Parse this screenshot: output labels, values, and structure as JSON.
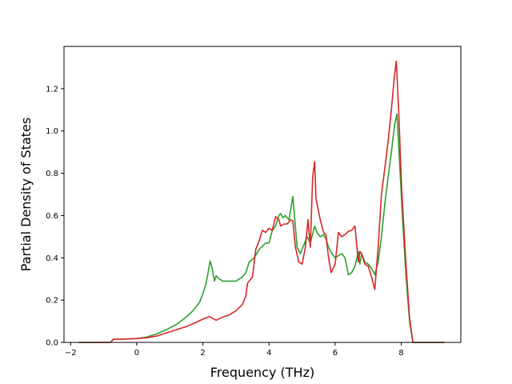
{
  "chart_data": {
    "type": "line",
    "title": "",
    "xlabel": "Frequency (THz)",
    "ylabel": "Partial Density of States",
    "xlim": [
      -2.2,
      9.8
    ],
    "ylim": [
      0.0,
      1.4
    ],
    "x_ticks": [
      -2,
      0,
      2,
      4,
      6,
      8
    ],
    "y_ticks": [
      0.0,
      0.2,
      0.4,
      0.6,
      0.8,
      1.0,
      1.2
    ],
    "x_tick_labels": [
      "−2",
      "0",
      "2",
      "4",
      "6",
      "8"
    ],
    "y_tick_labels": [
      "0.0",
      "0.2",
      "0.4",
      "0.6",
      "0.8",
      "1.0",
      "1.2"
    ],
    "grid": false,
    "legend": "none",
    "series": [
      {
        "color": "#2ca02c",
        "points": [
          [
            -1.75,
            0.0
          ],
          [
            -0.8,
            0.0
          ],
          [
            -0.7,
            0.015
          ],
          [
            -0.4,
            0.015
          ],
          [
            0.0,
            0.018
          ],
          [
            0.3,
            0.025
          ],
          [
            0.6,
            0.04
          ],
          [
            0.9,
            0.06
          ],
          [
            1.2,
            0.085
          ],
          [
            1.5,
            0.12
          ],
          [
            1.7,
            0.15
          ],
          [
            1.9,
            0.19
          ],
          [
            2.0,
            0.23
          ],
          [
            2.1,
            0.28
          ],
          [
            2.18,
            0.35
          ],
          [
            2.22,
            0.385
          ],
          [
            2.28,
            0.35
          ],
          [
            2.35,
            0.29
          ],
          [
            2.4,
            0.315
          ],
          [
            2.5,
            0.3
          ],
          [
            2.6,
            0.29
          ],
          [
            2.8,
            0.29
          ],
          [
            3.0,
            0.29
          ],
          [
            3.2,
            0.31
          ],
          [
            3.3,
            0.33
          ],
          [
            3.4,
            0.38
          ],
          [
            3.55,
            0.4
          ],
          [
            3.7,
            0.44
          ],
          [
            3.8,
            0.455
          ],
          [
            3.9,
            0.47
          ],
          [
            4.0,
            0.47
          ],
          [
            4.1,
            0.53
          ],
          [
            4.2,
            0.55
          ],
          [
            4.3,
            0.6
          ],
          [
            4.35,
            0.61
          ],
          [
            4.42,
            0.59
          ],
          [
            4.5,
            0.6
          ],
          [
            4.6,
            0.58
          ],
          [
            4.65,
            0.62
          ],
          [
            4.72,
            0.69
          ],
          [
            4.78,
            0.58
          ],
          [
            4.85,
            0.45
          ],
          [
            4.95,
            0.42
          ],
          [
            5.05,
            0.46
          ],
          [
            5.15,
            0.5
          ],
          [
            5.25,
            0.47
          ],
          [
            5.3,
            0.5
          ],
          [
            5.38,
            0.55
          ],
          [
            5.45,
            0.52
          ],
          [
            5.55,
            0.5
          ],
          [
            5.65,
            0.51
          ],
          [
            5.72,
            0.49
          ],
          [
            5.8,
            0.45
          ],
          [
            5.9,
            0.42
          ],
          [
            6.0,
            0.4
          ],
          [
            6.1,
            0.41
          ],
          [
            6.2,
            0.42
          ],
          [
            6.3,
            0.4
          ],
          [
            6.4,
            0.32
          ],
          [
            6.5,
            0.33
          ],
          [
            6.6,
            0.36
          ],
          [
            6.7,
            0.43
          ],
          [
            6.75,
            0.37
          ],
          [
            6.8,
            0.42
          ],
          [
            6.9,
            0.38
          ],
          [
            7.0,
            0.37
          ],
          [
            7.1,
            0.35
          ],
          [
            7.2,
            0.32
          ],
          [
            7.3,
            0.38
          ],
          [
            7.4,
            0.5
          ],
          [
            7.5,
            0.65
          ],
          [
            7.6,
            0.78
          ],
          [
            7.7,
            0.9
          ],
          [
            7.8,
            1.03
          ],
          [
            7.87,
            1.08
          ],
          [
            7.95,
            0.85
          ],
          [
            8.05,
            0.55
          ],
          [
            8.15,
            0.3
          ],
          [
            8.25,
            0.1
          ],
          [
            8.35,
            0.0
          ],
          [
            9.3,
            0.0
          ]
        ]
      },
      {
        "color": "#d62728",
        "points": [
          [
            -1.75,
            0.0
          ],
          [
            -0.8,
            0.0
          ],
          [
            -0.7,
            0.015
          ],
          [
            -0.4,
            0.015
          ],
          [
            0.0,
            0.018
          ],
          [
            0.3,
            0.022
          ],
          [
            0.6,
            0.03
          ],
          [
            0.9,
            0.045
          ],
          [
            1.2,
            0.06
          ],
          [
            1.5,
            0.075
          ],
          [
            1.8,
            0.095
          ],
          [
            2.0,
            0.11
          ],
          [
            2.2,
            0.122
          ],
          [
            2.4,
            0.105
          ],
          [
            2.6,
            0.12
          ],
          [
            2.8,
            0.13
          ],
          [
            3.0,
            0.15
          ],
          [
            3.2,
            0.18
          ],
          [
            3.3,
            0.22
          ],
          [
            3.35,
            0.28
          ],
          [
            3.45,
            0.3
          ],
          [
            3.5,
            0.31
          ],
          [
            3.6,
            0.44
          ],
          [
            3.7,
            0.48
          ],
          [
            3.8,
            0.53
          ],
          [
            3.9,
            0.52
          ],
          [
            4.0,
            0.54
          ],
          [
            4.1,
            0.53
          ],
          [
            4.2,
            0.595
          ],
          [
            4.3,
            0.58
          ],
          [
            4.35,
            0.55
          ],
          [
            4.45,
            0.56
          ],
          [
            4.55,
            0.56
          ],
          [
            4.65,
            0.58
          ],
          [
            4.72,
            0.575
          ],
          [
            4.8,
            0.45
          ],
          [
            4.9,
            0.38
          ],
          [
            5.0,
            0.37
          ],
          [
            5.1,
            0.45
          ],
          [
            5.18,
            0.58
          ],
          [
            5.25,
            0.45
          ],
          [
            5.32,
            0.78
          ],
          [
            5.38,
            0.855
          ],
          [
            5.42,
            0.68
          ],
          [
            5.55,
            0.58
          ],
          [
            5.65,
            0.52
          ],
          [
            5.72,
            0.51
          ],
          [
            5.8,
            0.4
          ],
          [
            5.88,
            0.33
          ],
          [
            6.0,
            0.37
          ],
          [
            6.1,
            0.52
          ],
          [
            6.2,
            0.5
          ],
          [
            6.3,
            0.51
          ],
          [
            6.4,
            0.525
          ],
          [
            6.5,
            0.53
          ],
          [
            6.6,
            0.55
          ],
          [
            6.7,
            0.38
          ],
          [
            6.75,
            0.43
          ],
          [
            6.8,
            0.42
          ],
          [
            6.9,
            0.37
          ],
          [
            7.0,
            0.36
          ],
          [
            7.1,
            0.31
          ],
          [
            7.2,
            0.25
          ],
          [
            7.3,
            0.45
          ],
          [
            7.4,
            0.7
          ],
          [
            7.5,
            0.82
          ],
          [
            7.6,
            0.95
          ],
          [
            7.7,
            1.1
          ],
          [
            7.8,
            1.27
          ],
          [
            7.85,
            1.33
          ],
          [
            7.92,
            1.1
          ],
          [
            8.02,
            0.7
          ],
          [
            8.15,
            0.35
          ],
          [
            8.25,
            0.12
          ],
          [
            8.35,
            0.0
          ],
          [
            9.3,
            0.0
          ]
        ]
      }
    ]
  }
}
